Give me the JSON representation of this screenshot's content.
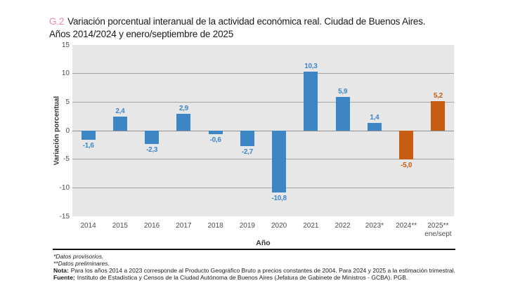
{
  "colors": {
    "bar_blue": "#3d86c6",
    "bar_orange": "#c65d13",
    "title_tag_pink": "#ea87a3",
    "plot_background": "#e7e7e7",
    "gridline": "#a3a3a3",
    "zero_line": "#8f8f8f",
    "axis_text": "#4d4d4d",
    "title_text": "#1a1a1a"
  },
  "title": {
    "tag": "G.2",
    "line1": "Variación porcentual interanual de la actividad económica real. Ciudad de Buenos Aires.",
    "line2": "Años 2014/2024 y enero/septiembre de 2025"
  },
  "chart_data": {
    "type": "bar",
    "title": "Variación porcentual interanual de la actividad económica real. Ciudad de Buenos Aires. Años 2014/2024 y enero/septiembre de 2025",
    "xlabel": "Año",
    "ylabel": "Variación porcentual",
    "ylim": [
      -15,
      15
    ],
    "ytick_step": 5,
    "yticks": [
      15,
      10,
      5,
      0,
      -5,
      -10,
      -15
    ],
    "gridlines": [
      10,
      5,
      0,
      -5,
      -10
    ],
    "grid": true,
    "legend_position": "none",
    "categories": [
      "2014",
      "2015",
      "2016",
      "2017",
      "2018",
      "2019",
      "2020",
      "2021",
      "2022",
      "2023*",
      "2024**",
      "2025**"
    ],
    "values": [
      -1.6,
      2.4,
      -2.3,
      2.9,
      -0.6,
      -2.7,
      -10.8,
      10.3,
      5.9,
      1.4,
      -5.0,
      5.2
    ],
    "points": [
      {
        "category": "2014",
        "value": -1.6,
        "label": "-1,6",
        "color": "blue"
      },
      {
        "category": "2015",
        "value": 2.4,
        "label": "2,4",
        "color": "blue"
      },
      {
        "category": "2016",
        "value": -2.3,
        "label": "-2,3",
        "color": "blue"
      },
      {
        "category": "2017",
        "value": 2.9,
        "label": "2,9",
        "color": "blue"
      },
      {
        "category": "2018",
        "value": -0.6,
        "label": "-0,6",
        "color": "blue"
      },
      {
        "category": "2019",
        "value": -2.7,
        "label": "-2,7",
        "color": "blue"
      },
      {
        "category": "2020",
        "value": -10.8,
        "label": "-10,8",
        "color": "blue"
      },
      {
        "category": "2021",
        "value": 10.3,
        "label": "10,3",
        "color": "blue"
      },
      {
        "category": "2022",
        "value": 5.9,
        "label": "5,9",
        "color": "blue"
      },
      {
        "category": "2023*",
        "value": 1.4,
        "label": "1,4",
        "color": "blue"
      },
      {
        "category": "2024**",
        "value": -5.0,
        "label": "-5,0",
        "color": "orange"
      },
      {
        "category": "2025**",
        "category_line2": "ene/sept",
        "value": 5.2,
        "label": "5,2",
        "color": "orange"
      }
    ]
  },
  "notes": {
    "provisional": "*Datos provisorios.",
    "preliminary": "**Datos preliminares.",
    "nota_label": "Nota:",
    "nota_text": "Para los años 2014 a 2023 corresponde al Producto Geográfico Bruto a precios constantes de 2004. Para 2024 y 2025 a la estimación trimestral.",
    "fuente_label": "Fuente:",
    "fuente_text": "Instituto de Estadística y Censos de la Ciudad Autónoma de Buenos Aires (Jefatura de Gabinete de Ministros - GCBA). PGB."
  }
}
